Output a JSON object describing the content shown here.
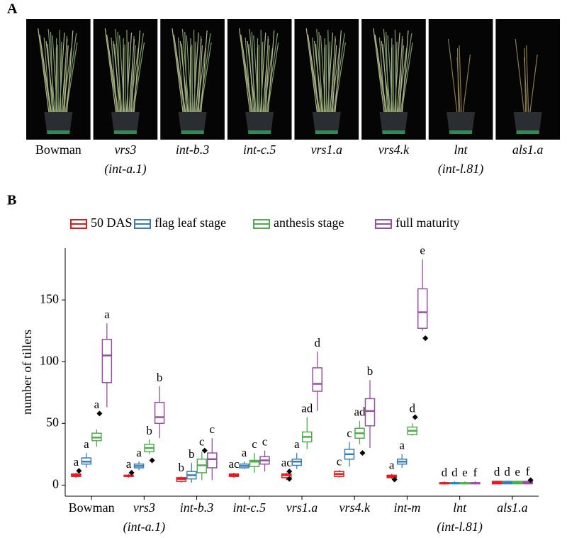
{
  "panel_a": {
    "label": "A",
    "photos": [
      {
        "label": "Bowman",
        "sublabel": null
      },
      {
        "label": "vrs3",
        "sublabel": "(int-a.1)"
      },
      {
        "label": "int-b.3",
        "sublabel": null
      },
      {
        "label": "int-c.5",
        "sublabel": null
      },
      {
        "label": "vrs1.a",
        "sublabel": null
      },
      {
        "label": "vrs4.k",
        "sublabel": null
      },
      {
        "label": "lnt",
        "sublabel": "(int-l.81)"
      },
      {
        "label": "als1.a",
        "sublabel": null
      }
    ]
  },
  "chart_data": {
    "type": "boxplot",
    "panel_label": "B",
    "y_label": "number of tillers",
    "categories": [
      "Bowman",
      "vrs3",
      "int-b.3",
      "int-c.5",
      "vrs1.a",
      "vrs4.k",
      "int-m",
      "lnt",
      "als1.a"
    ],
    "category_sublabels": [
      null,
      "(int-a.1)",
      null,
      null,
      null,
      null,
      null,
      "(int-l.81)",
      null
    ],
    "ylim": [
      -9,
      192
    ],
    "yticks": [
      0,
      50,
      100,
      150
    ],
    "series": [
      {
        "name": "50 DAS",
        "color": "#e41a1c",
        "whisker_low": [
          6,
          6,
          2,
          6,
          4,
          6,
          5,
          0.5,
          1
        ],
        "q1": [
          7,
          7,
          3,
          7,
          6,
          7,
          6,
          1,
          1
        ],
        "median": [
          8,
          7.5,
          5,
          8,
          8,
          9,
          7,
          1.5,
          2
        ],
        "q3": [
          9,
          8,
          6,
          9,
          9,
          11,
          8,
          2,
          3
        ],
        "whisker_high": [
          10,
          9,
          7,
          10,
          10,
          12,
          9,
          3,
          3.5
        ],
        "outliers": [
          [
            11.5
          ],
          [
            10
          ],
          [],
          [],
          [
            5,
            11
          ],
          [],
          [
            4.5
          ],
          [],
          []
        ],
        "letters": [
          "a",
          "a",
          "b",
          "ac",
          "ac",
          "c",
          "a",
          "d",
          "d"
        ]
      },
      {
        "name": "flag leaf stage",
        "color": "#377eb8",
        "whisker_low": [
          14,
          12,
          2,
          13,
          13,
          15,
          14,
          0.5,
          1
        ],
        "q1": [
          17,
          14,
          5,
          14,
          16,
          21,
          17,
          1,
          1
        ],
        "median": [
          19,
          15.5,
          8,
          15.5,
          19,
          25,
          19,
          1.5,
          2
        ],
        "q3": [
          22,
          17,
          11,
          17,
          21,
          29,
          21,
          2,
          3
        ],
        "whisker_high": [
          26,
          19,
          18,
          19,
          26,
          35,
          25,
          3,
          3.5
        ],
        "outliers": [
          [],
          [],
          [],
          [],
          [],
          [],
          [],
          [],
          []
        ],
        "letters": [
          "a",
          "a",
          "b",
          "a",
          "a",
          "c",
          "a",
          "d",
          "d"
        ]
      },
      {
        "name": "anthesis stage",
        "color": "#4daf4a",
        "whisker_low": [
          31,
          25,
          4,
          10,
          29,
          33,
          40,
          0.5,
          1
        ],
        "q1": [
          36,
          27,
          10,
          15,
          35,
          38,
          41,
          1,
          1
        ],
        "median": [
          38.5,
          30,
          16,
          19,
          39,
          42,
          44,
          1.5,
          2
        ],
        "q3": [
          42,
          33,
          21,
          20,
          43,
          46,
          47,
          2,
          3
        ],
        "whisker_high": [
          45,
          37,
          27,
          26,
          55,
          52,
          50,
          3,
          3.5
        ],
        "outliers": [
          [
            58
          ],
          [
            20
          ],
          [
            28
          ],
          [],
          [],
          [
            26
          ],
          [
            55
          ],
          [],
          []
        ],
        "letters": [
          "a",
          "b",
          "c",
          "c",
          "ad",
          "ad",
          "d",
          "e",
          "e"
        ]
      },
      {
        "name": "full maturity",
        "color": "#984ea3",
        "whisker_low": [
          63,
          38,
          4,
          11,
          60,
          30,
          125,
          0.5,
          1
        ],
        "q1": [
          83,
          50,
          14,
          17,
          76,
          48,
          127,
          1,
          1
        ],
        "median": [
          105,
          55,
          21,
          20,
          82,
          60,
          140,
          1.5,
          2
        ],
        "q3": [
          118,
          67,
          26,
          23,
          95,
          70,
          159,
          2,
          3
        ],
        "whisker_high": [
          131,
          80,
          38,
          28,
          108,
          85,
          183,
          3,
          3.5
        ],
        "outliers": [
          [],
          [],
          [],
          [],
          [],
          [],
          [
            119
          ],
          [],
          [
            4
          ]
        ],
        "letters": [
          "a",
          "b",
          "c",
          "c",
          "d",
          "b",
          "e",
          "f",
          "f"
        ]
      }
    ]
  }
}
